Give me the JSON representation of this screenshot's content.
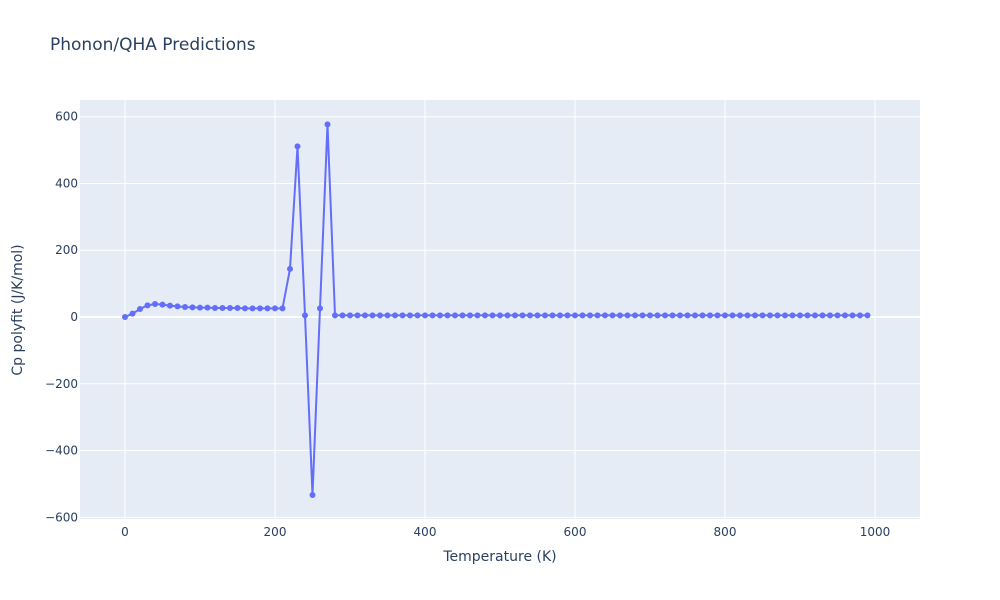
{
  "chart_data": {
    "type": "line",
    "title": "Phonon/QHA Predictions",
    "xlabel": "Temperature (K)",
    "ylabel": "Cp polyfit (J/K/mol)",
    "xlim": [
      -60,
      1060
    ],
    "ylim": [
      -605,
      650
    ],
    "xticks": [
      0,
      200,
      400,
      600,
      800,
      1000
    ],
    "xtick_labels": [
      "0",
      "200",
      "400",
      "600",
      "800",
      "1000"
    ],
    "yticks": [
      -600,
      -400,
      -200,
      0,
      200,
      400,
      600
    ],
    "ytick_labels": [
      "−600",
      "−400",
      "−200",
      "0",
      "200",
      "400",
      "600"
    ],
    "grid": true,
    "colors": {
      "series": "#636efa",
      "plot_bg": "#e5ecf6",
      "grid": "#ffffff",
      "text": "#2a3f5f"
    },
    "series": [
      {
        "mode": "lines+markers",
        "x": [
          0,
          10,
          20,
          30,
          40,
          50,
          60,
          70,
          80,
          90,
          100,
          110,
          120,
          130,
          140,
          150,
          160,
          170,
          180,
          190,
          200,
          210,
          220,
          230,
          240,
          250,
          260,
          270,
          280,
          290,
          300,
          310,
          320,
          330,
          340,
          350,
          360,
          370,
          380,
          390,
          400,
          410,
          420,
          430,
          440,
          450,
          460,
          470,
          480,
          490,
          500,
          510,
          520,
          530,
          540,
          550,
          560,
          570,
          580,
          590,
          600,
          610,
          620,
          630,
          640,
          650,
          660,
          670,
          680,
          690,
          700,
          710,
          720,
          730,
          740,
          750,
          760,
          770,
          780,
          790,
          800,
          810,
          820,
          830,
          840,
          850,
          860,
          870,
          880,
          890,
          900,
          910,
          920,
          930,
          940,
          950,
          960,
          970,
          980,
          990
        ],
        "y": [
          0,
          10,
          24,
          35,
          39,
          37,
          34,
          32,
          30,
          29,
          28,
          28,
          27,
          27,
          27,
          27,
          26,
          26,
          26,
          26,
          26,
          26,
          144,
          511,
          5,
          -533,
          26,
          577,
          5,
          5,
          5,
          5,
          5,
          5,
          5,
          5,
          5,
          5,
          5,
          5,
          5,
          5,
          5,
          5,
          5,
          5,
          5,
          5,
          5,
          5,
          5,
          5,
          5,
          5,
          5,
          5,
          5,
          5,
          5,
          5,
          5,
          5,
          5,
          5,
          5,
          5,
          5,
          5,
          5,
          5,
          5,
          5,
          5,
          5,
          5,
          5,
          5,
          5,
          5,
          5,
          5,
          5,
          5,
          5,
          5,
          5,
          5,
          5,
          5,
          5,
          5,
          5,
          5,
          5,
          5,
          5,
          5,
          5,
          5,
          5
        ]
      }
    ]
  }
}
